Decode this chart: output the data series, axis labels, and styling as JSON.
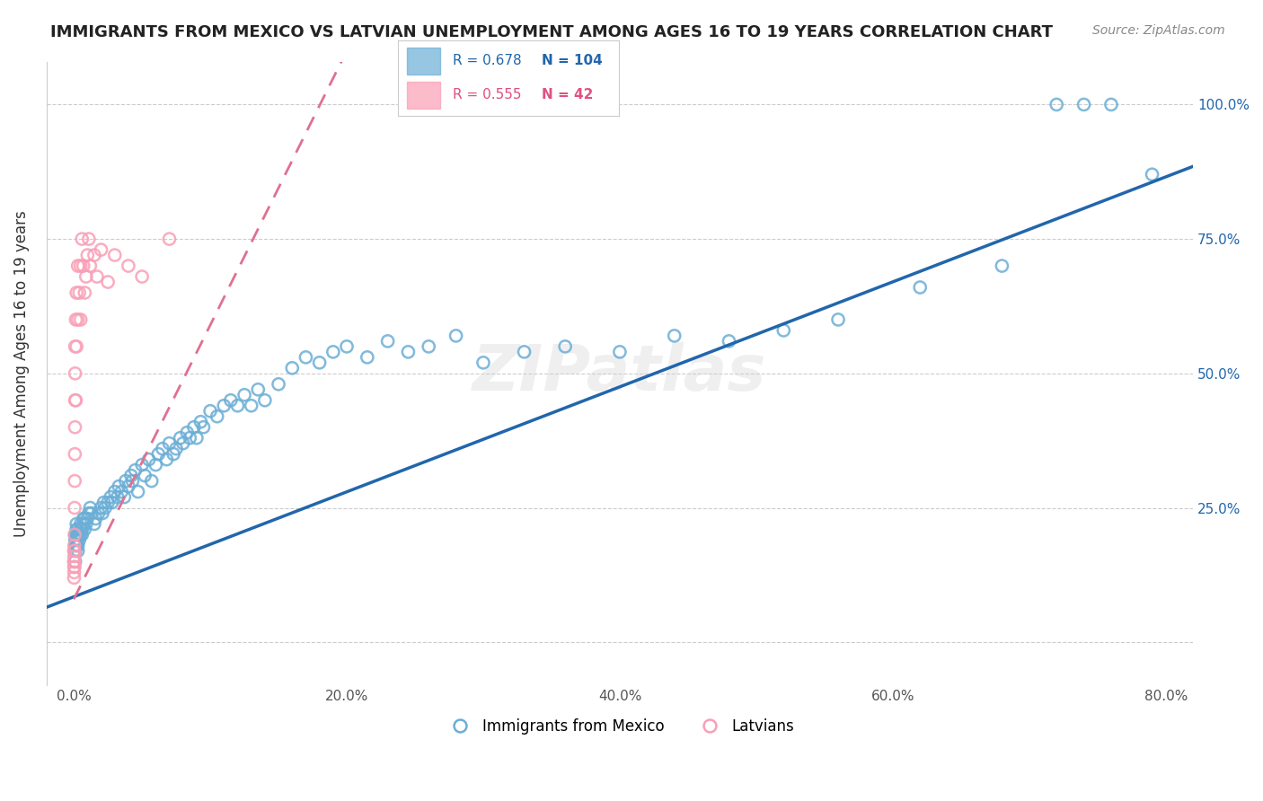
{
  "title": "IMMIGRANTS FROM MEXICO VS LATVIAN UNEMPLOYMENT AMONG AGES 16 TO 19 YEARS CORRELATION CHART",
  "source": "Source: ZipAtlas.com",
  "ylabel": "Unemployment Among Ages 16 to 19 years",
  "xaxis_label_blue": "Immigrants from Mexico",
  "xaxis_label_pink": "Latvians",
  "legend_blue": {
    "R": "0.678",
    "N": "104"
  },
  "legend_pink": {
    "R": "0.555",
    "N": "42"
  },
  "blue_color": "#6baed6",
  "pink_color": "#fa9fb5",
  "blue_line_color": "#2166ac",
  "pink_line_color": "#e07090",
  "blue_scatter": {
    "x": [
      0.001,
      0.001,
      0.001,
      0.001,
      0.001,
      0.002,
      0.002,
      0.002,
      0.002,
      0.002,
      0.003,
      0.003,
      0.003,
      0.003,
      0.004,
      0.004,
      0.005,
      0.005,
      0.005,
      0.006,
      0.006,
      0.007,
      0.007,
      0.008,
      0.008,
      0.009,
      0.01,
      0.011,
      0.012,
      0.013,
      0.015,
      0.016,
      0.018,
      0.02,
      0.021,
      0.022,
      0.023,
      0.025,
      0.027,
      0.028,
      0.03,
      0.032,
      0.033,
      0.035,
      0.037,
      0.038,
      0.04,
      0.042,
      0.043,
      0.045,
      0.047,
      0.05,
      0.052,
      0.055,
      0.057,
      0.06,
      0.062,
      0.065,
      0.068,
      0.07,
      0.073,
      0.075,
      0.078,
      0.08,
      0.083,
      0.085,
      0.088,
      0.09,
      0.093,
      0.095,
      0.1,
      0.105,
      0.11,
      0.115,
      0.12,
      0.125,
      0.13,
      0.135,
      0.14,
      0.15,
      0.16,
      0.17,
      0.18,
      0.19,
      0.2,
      0.215,
      0.23,
      0.245,
      0.26,
      0.28,
      0.3,
      0.33,
      0.36,
      0.4,
      0.44,
      0.48,
      0.52,
      0.56,
      0.62,
      0.68,
      0.72,
      0.74,
      0.76,
      0.79
    ],
    "y": [
      0.15,
      0.17,
      0.18,
      0.19,
      0.2,
      0.18,
      0.19,
      0.2,
      0.21,
      0.22,
      0.17,
      0.18,
      0.2,
      0.21,
      0.19,
      0.2,
      0.2,
      0.21,
      0.22,
      0.2,
      0.21,
      0.22,
      0.23,
      0.21,
      0.23,
      0.22,
      0.23,
      0.24,
      0.25,
      0.24,
      0.22,
      0.23,
      0.24,
      0.25,
      0.24,
      0.26,
      0.25,
      0.26,
      0.27,
      0.26,
      0.28,
      0.27,
      0.29,
      0.28,
      0.27,
      0.3,
      0.29,
      0.31,
      0.3,
      0.32,
      0.28,
      0.33,
      0.31,
      0.34,
      0.3,
      0.33,
      0.35,
      0.36,
      0.34,
      0.37,
      0.35,
      0.36,
      0.38,
      0.37,
      0.39,
      0.38,
      0.4,
      0.38,
      0.41,
      0.4,
      0.43,
      0.42,
      0.44,
      0.45,
      0.44,
      0.46,
      0.44,
      0.47,
      0.45,
      0.48,
      0.51,
      0.53,
      0.52,
      0.54,
      0.55,
      0.53,
      0.56,
      0.54,
      0.55,
      0.57,
      0.52,
      0.54,
      0.55,
      0.54,
      0.57,
      0.56,
      0.58,
      0.6,
      0.66,
      0.7,
      1.0,
      1.0,
      1.0,
      0.87
    ]
  },
  "pink_scatter": {
    "x": [
      0.0002,
      0.0002,
      0.0002,
      0.0003,
      0.0003,
      0.0003,
      0.0004,
      0.0004,
      0.0005,
      0.0005,
      0.0006,
      0.0006,
      0.0007,
      0.0008,
      0.0009,
      0.001,
      0.001,
      0.001,
      0.0015,
      0.0015,
      0.002,
      0.002,
      0.003,
      0.003,
      0.004,
      0.005,
      0.005,
      0.006,
      0.007,
      0.008,
      0.009,
      0.01,
      0.011,
      0.012,
      0.015,
      0.017,
      0.02,
      0.025,
      0.03,
      0.04,
      0.05,
      0.07
    ],
    "y": [
      0.12,
      0.15,
      0.17,
      0.13,
      0.14,
      0.15,
      0.16,
      0.18,
      0.14,
      0.17,
      0.2,
      0.25,
      0.3,
      0.35,
      0.4,
      0.45,
      0.5,
      0.55,
      0.6,
      0.45,
      0.65,
      0.55,
      0.7,
      0.6,
      0.65,
      0.7,
      0.6,
      0.75,
      0.7,
      0.65,
      0.68,
      0.72,
      0.75,
      0.7,
      0.72,
      0.68,
      0.73,
      0.67,
      0.72,
      0.7,
      0.68,
      0.75
    ]
  },
  "xaxis_ticks": [
    0.0,
    0.2,
    0.4,
    0.6,
    0.8
  ],
  "xaxis_tick_labels": [
    "0.0%",
    "20.0%",
    "40.0%",
    "60.0%",
    "80.0%"
  ],
  "yaxis_ticks": [
    0.0,
    0.25,
    0.5,
    0.75,
    1.0
  ],
  "yaxis_tick_labels": [
    "",
    "25.0%",
    "50.0%",
    "75.0%",
    "100.0%"
  ],
  "watermark": "ZIPatlas",
  "xlim": [
    -0.02,
    0.82
  ],
  "ylim": [
    -0.08,
    1.08
  ],
  "blue_line": {
    "x0": -0.02,
    "x1": 0.82,
    "y0": 0.065,
    "y1": 0.885
  },
  "pink_line": {
    "x0": 0.0,
    "x1": 0.2,
    "y0": 0.08,
    "y1": 1.1
  }
}
